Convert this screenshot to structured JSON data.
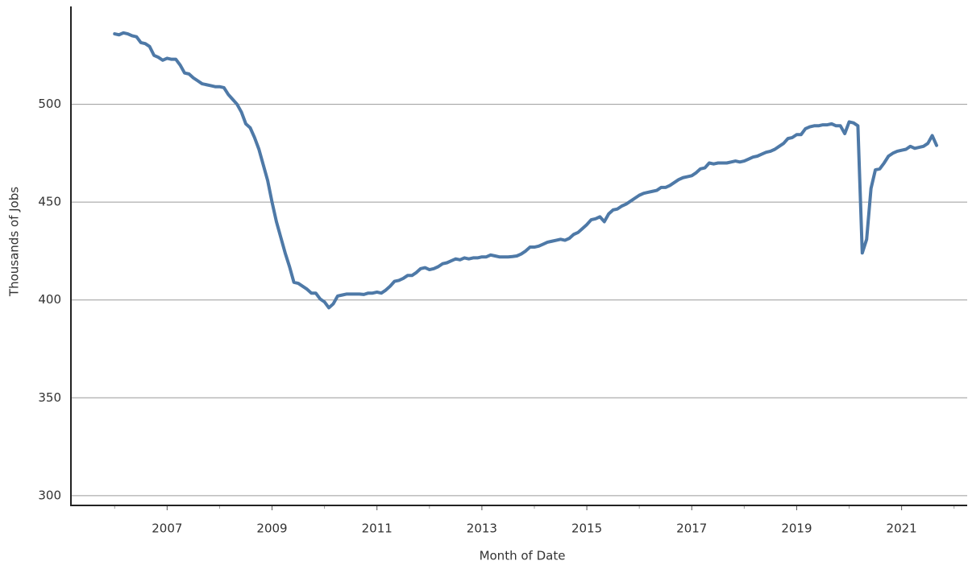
{
  "chart_data": {
    "type": "line",
    "x_label": "Month of Date",
    "y_label": "Thousands of Jobs",
    "x": [
      "2006-01",
      "2006-02",
      "2006-03",
      "2006-04",
      "2006-05",
      "2006-06",
      "2006-07",
      "2006-08",
      "2006-09",
      "2006-10",
      "2006-11",
      "2006-12",
      "2007-01",
      "2007-02",
      "2007-03",
      "2007-04",
      "2007-05",
      "2007-06",
      "2007-07",
      "2007-08",
      "2007-09",
      "2007-10",
      "2007-11",
      "2007-12",
      "2008-01",
      "2008-02",
      "2008-03",
      "2008-04",
      "2008-05",
      "2008-06",
      "2008-07",
      "2008-08",
      "2008-09",
      "2008-10",
      "2008-11",
      "2008-12",
      "2009-01",
      "2009-02",
      "2009-03",
      "2009-04",
      "2009-05",
      "2009-06",
      "2009-07",
      "2009-08",
      "2009-09",
      "2009-10",
      "2009-11",
      "2009-12",
      "2010-01",
      "2010-02",
      "2010-03",
      "2010-04",
      "2010-05",
      "2010-06",
      "2010-07",
      "2010-08",
      "2010-09",
      "2010-10",
      "2010-11",
      "2010-12",
      "2011-01",
      "2011-02",
      "2011-03",
      "2011-04",
      "2011-05",
      "2011-06",
      "2011-07",
      "2011-08",
      "2011-09",
      "2011-10",
      "2011-11",
      "2011-12",
      "2012-01",
      "2012-02",
      "2012-03",
      "2012-04",
      "2012-05",
      "2012-06",
      "2012-07",
      "2012-08",
      "2012-09",
      "2012-10",
      "2012-11",
      "2012-12",
      "2013-01",
      "2013-02",
      "2013-03",
      "2013-04",
      "2013-05",
      "2013-06",
      "2013-07",
      "2013-08",
      "2013-09",
      "2013-10",
      "2013-11",
      "2013-12",
      "2014-01",
      "2014-02",
      "2014-03",
      "2014-04",
      "2014-05",
      "2014-06",
      "2014-07",
      "2014-08",
      "2014-09",
      "2014-10",
      "2014-11",
      "2014-12",
      "2015-01",
      "2015-02",
      "2015-03",
      "2015-04",
      "2015-05",
      "2015-06",
      "2015-07",
      "2015-08",
      "2015-09",
      "2015-10",
      "2015-11",
      "2015-12",
      "2016-01",
      "2016-02",
      "2016-03",
      "2016-04",
      "2016-05",
      "2016-06",
      "2016-07",
      "2016-08",
      "2016-09",
      "2016-10",
      "2016-11",
      "2016-12",
      "2017-01",
      "2017-02",
      "2017-03",
      "2017-04",
      "2017-05",
      "2017-06",
      "2017-07",
      "2017-08",
      "2017-09",
      "2017-10",
      "2017-11",
      "2017-12",
      "2018-01",
      "2018-02",
      "2018-03",
      "2018-04",
      "2018-05",
      "2018-06",
      "2018-07",
      "2018-08",
      "2018-09",
      "2018-10",
      "2018-11",
      "2018-12",
      "2019-01",
      "2019-02",
      "2019-03",
      "2019-04",
      "2019-05",
      "2019-06",
      "2019-07",
      "2019-08",
      "2019-09",
      "2019-10",
      "2019-11",
      "2019-12",
      "2020-01",
      "2020-02",
      "2020-03",
      "2020-04",
      "2020-05",
      "2020-06",
      "2020-07",
      "2020-08",
      "2020-09",
      "2020-10",
      "2020-11",
      "2020-12",
      "2021-01",
      "2021-02",
      "2021-03",
      "2021-04",
      "2021-05",
      "2021-06",
      "2021-07",
      "2021-08",
      "2021-09"
    ],
    "values": [
      536,
      535.5,
      536.5,
      536,
      535,
      534.5,
      531.5,
      531,
      529.5,
      525,
      524,
      522.5,
      523.5,
      523,
      523,
      520,
      516,
      515.5,
      513.5,
      512,
      510.5,
      510,
      509.5,
      509,
      509,
      508.5,
      505,
      502.5,
      500,
      496,
      490,
      488,
      483,
      477,
      469,
      461,
      450,
      440,
      432,
      424,
      417,
      409,
      408.5,
      407,
      405.5,
      403.5,
      403.5,
      400.5,
      399,
      396,
      398,
      402,
      402.5,
      403,
      403,
      403,
      403,
      402.8,
      403.5,
      403.5,
      404,
      403.5,
      405,
      407,
      409.5,
      410,
      411,
      412.5,
      412.5,
      414,
      416,
      416.5,
      415.5,
      416,
      417,
      418.5,
      419,
      420,
      421,
      420.5,
      421.5,
      421,
      421.5,
      421.5,
      422,
      422,
      423,
      422.5,
      422,
      422,
      422,
      422.2,
      422.5,
      423.5,
      425,
      427,
      427,
      427.5,
      428.5,
      429.5,
      430,
      430.5,
      431,
      430.5,
      431.5,
      433.5,
      434.5,
      436.5,
      438.5,
      441,
      441.5,
      442.5,
      440,
      444,
      446,
      446.5,
      448,
      449,
      450.5,
      452,
      453.5,
      454.5,
      455,
      455.5,
      456,
      457.5,
      457.5,
      458.5,
      460,
      461.5,
      462.5,
      463,
      463.5,
      465,
      467,
      467.5,
      470,
      469.5,
      470,
      470,
      470,
      470.5,
      471,
      470.5,
      471,
      472,
      473,
      473.5,
      474.5,
      475.5,
      476,
      477,
      478.5,
      480,
      482.5,
      483,
      484.5,
      484.5,
      487.5,
      488.5,
      489,
      489,
      489.5,
      489.5,
      490,
      489,
      489,
      485,
      491,
      490.5,
      489,
      424,
      431,
      457,
      466.5,
      467,
      470,
      473.5,
      475,
      476,
      476.5,
      477,
      478.5,
      477.5,
      478,
      478.5,
      480,
      484,
      479
    ],
    "color": "#4e79a7",
    "xlim": [
      "2005-03",
      "2022-04"
    ],
    "xticks": [
      {
        "value": "2007-01",
        "label": "2007"
      },
      {
        "value": "2009-01",
        "label": "2009"
      },
      {
        "value": "2011-01",
        "label": "2011"
      },
      {
        "value": "2013-01",
        "label": "2013"
      },
      {
        "value": "2015-01",
        "label": "2015"
      },
      {
        "value": "2017-01",
        "label": "2017"
      },
      {
        "value": "2019-01",
        "label": "2019"
      },
      {
        "value": "2021-01",
        "label": "2021"
      }
    ],
    "xminorticks": [
      "2006-01",
      "2008-01",
      "2010-01",
      "2012-01",
      "2014-01",
      "2016-01",
      "2018-01",
      "2020-01",
      "2022-01"
    ],
    "ylim": [
      295,
      550
    ],
    "yticks": [
      300,
      350,
      400,
      450,
      500
    ],
    "grid": true
  }
}
